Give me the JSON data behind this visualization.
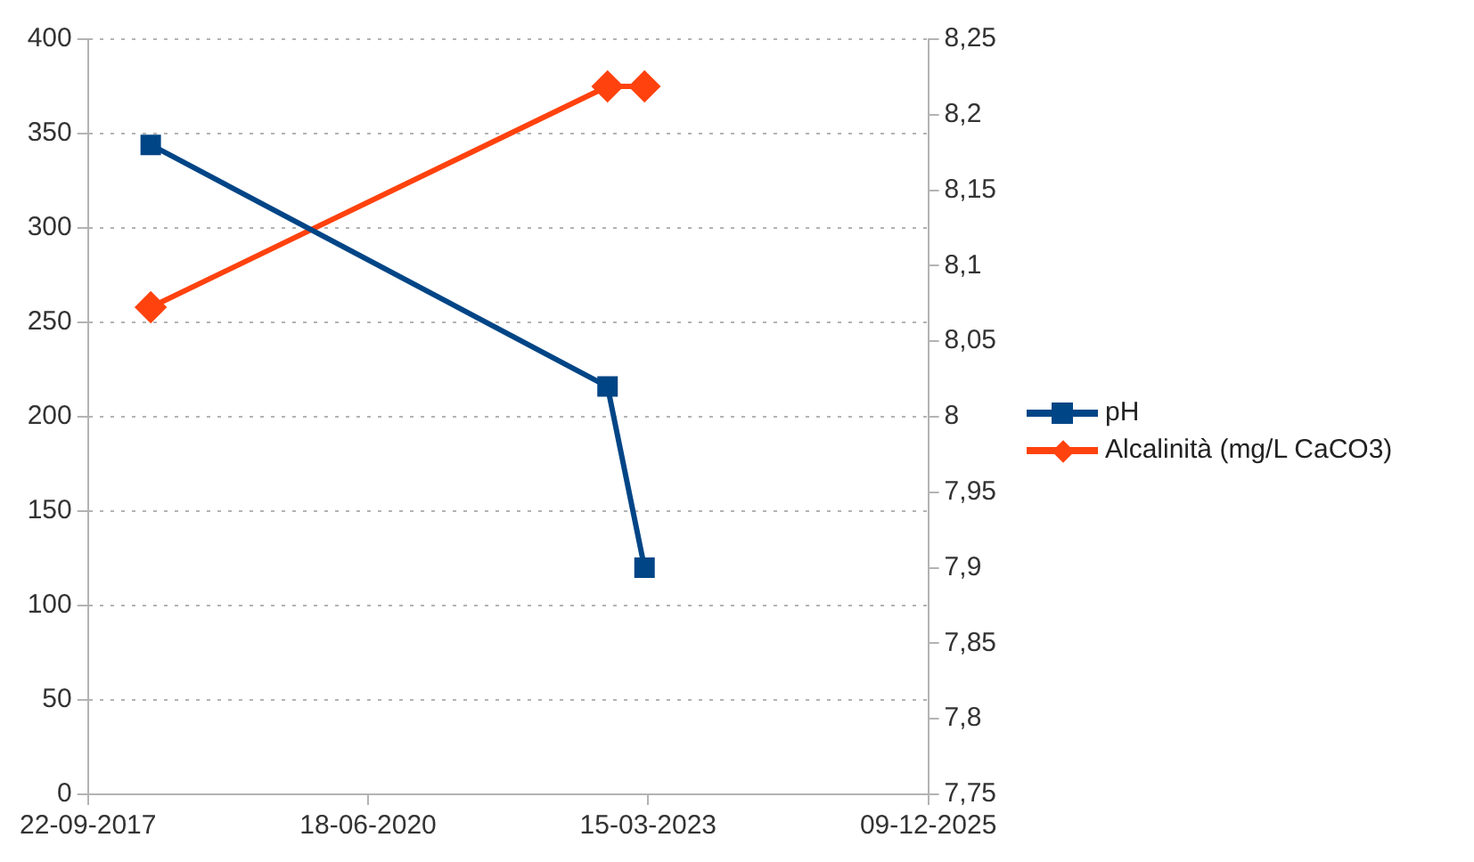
{
  "chart_data": {
    "type": "line",
    "legend": "right",
    "grid": "y",
    "line_style": "solid",
    "xlim": [
      "2017-09-22",
      "2025-12-09"
    ],
    "xticks": [
      {
        "value": "2017-09-22",
        "label": "22-09-2017"
      },
      {
        "value": "2020-06-18",
        "label": "18-06-2020"
      },
      {
        "value": "2023-03-15",
        "label": "15-03-2023"
      },
      {
        "value": "2025-12-09",
        "label": "09-12-2025"
      }
    ],
    "ylim": [
      0,
      400
    ],
    "yticks": [
      0,
      50,
      100,
      150,
      200,
      250,
      300,
      350,
      400
    ],
    "y2lim": [
      7.75,
      8.25
    ],
    "y2ticks": [
      {
        "value": 7.75,
        "label": "7,75"
      },
      {
        "value": 7.8,
        "label": "7,8"
      },
      {
        "value": 7.85,
        "label": "7,85"
      },
      {
        "value": 7.9,
        "label": "7,9"
      },
      {
        "value": 7.95,
        "label": "7,95"
      },
      {
        "value": 8,
        "label": "8"
      },
      {
        "value": 8.05,
        "label": "8,05"
      },
      {
        "value": 8.1,
        "label": "8,1"
      },
      {
        "value": 8.15,
        "label": "8,15"
      },
      {
        "value": 8.2,
        "label": "8,2"
      },
      {
        "value": 8.25,
        "label": "8,25"
      }
    ],
    "series": [
      {
        "name": "pH",
        "color": "#004586",
        "axis": "y2",
        "marker": "square",
        "x": [
          "2018-05-04",
          "2022-10-21",
          "2023-03-02"
        ],
        "values": [
          8.18,
          8.02,
          7.9
        ]
      },
      {
        "name": "Alcalinità (mg/L CaCO3)",
        "color": "#ff420e",
        "marker": "diamond",
        "x": [
          "2018-05-04",
          "2022-10-21",
          "2023-03-02"
        ],
        "values": [
          258,
          375,
          375
        ]
      }
    ]
  }
}
